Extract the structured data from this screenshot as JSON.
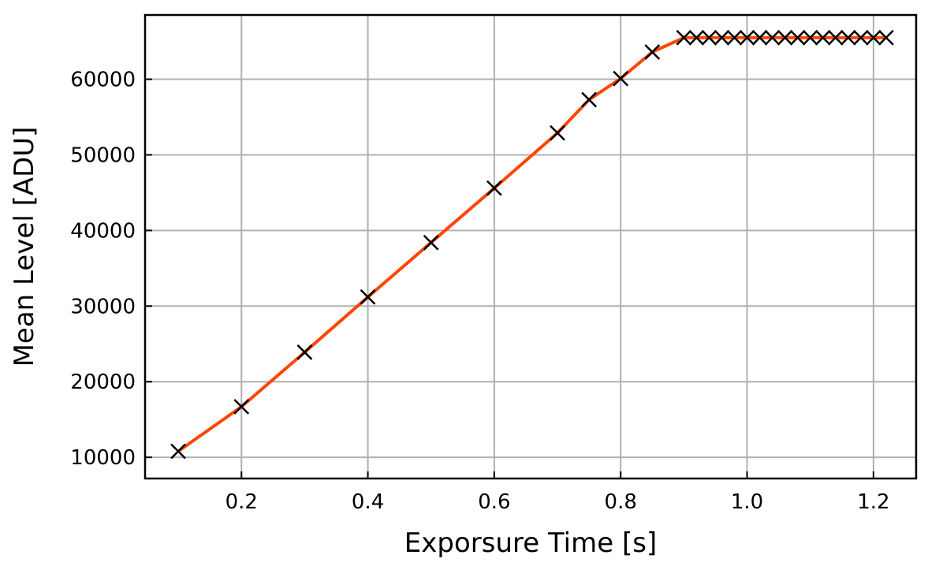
{
  "chart_data": {
    "type": "line",
    "title": "",
    "xlabel": "Exporsure Time [s]",
    "ylabel": "Mean Level [ADU]",
    "xlim": [
      0.0475,
      1.2675
    ],
    "ylim": [
      7200,
      68500
    ],
    "xticks": [
      0.2,
      0.4,
      0.6,
      0.8,
      1.0,
      1.2
    ],
    "xtick_labels": [
      "0.2",
      "0.4",
      "0.6",
      "0.8",
      "1.0",
      "1.2"
    ],
    "yticks": [
      10000,
      20000,
      30000,
      40000,
      50000,
      60000
    ],
    "ytick_labels": [
      "10000",
      "20000",
      "30000",
      "40000",
      "50000",
      "60000"
    ],
    "grid": true,
    "line_color": "#ff4500",
    "marker_color": "#000000",
    "marker": "x",
    "x": [
      0.1,
      0.2,
      0.3,
      0.4,
      0.5,
      0.6,
      0.7,
      0.75,
      0.8,
      0.85,
      0.9,
      0.92,
      0.94,
      0.96,
      0.98,
      1.0,
      1.02,
      1.04,
      1.06,
      1.08,
      1.1,
      1.12,
      1.14,
      1.16,
      1.18,
      1.2,
      1.22
    ],
    "y": [
      10800,
      16700,
      23900,
      31200,
      38400,
      45600,
      52900,
      57300,
      60100,
      63600,
      65500,
      65500,
      65500,
      65500,
      65500,
      65500,
      65500,
      65500,
      65500,
      65500,
      65500,
      65500,
      65500,
      65500,
      65500,
      65500,
      65500
    ]
  }
}
